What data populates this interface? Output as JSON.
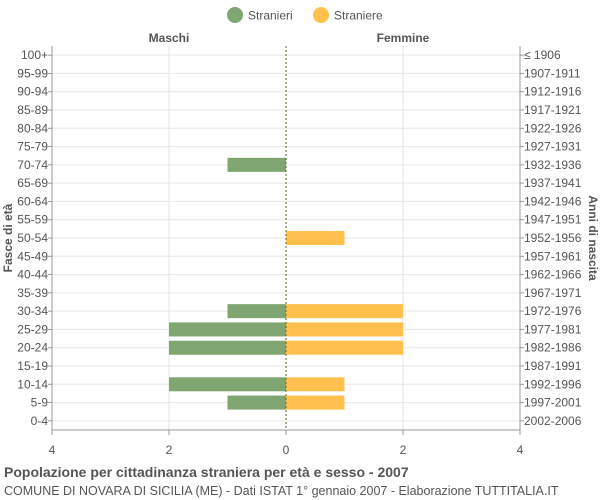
{
  "chart_data": {
    "type": "bar",
    "orientation": "horizontal-population-pyramid",
    "legend": {
      "placement": "top",
      "items": [
        {
          "label": "Stranieri",
          "color": "#7fa570"
        },
        {
          "label": "Straniere",
          "color": "#ffc04d"
        }
      ]
    },
    "left_header": "Maschi",
    "right_header": "Femmine",
    "ylabel_left": "Fasce di età",
    "ylabel_right": "Anni di nascita",
    "x_ticks": [
      "4",
      "2",
      "0",
      "2",
      "4"
    ],
    "xlim": [
      -4,
      4
    ],
    "grid": true,
    "age_groups": [
      "100+",
      "95-99",
      "90-94",
      "85-89",
      "80-84",
      "75-79",
      "70-74",
      "65-69",
      "60-64",
      "55-59",
      "50-54",
      "45-49",
      "40-44",
      "35-39",
      "30-34",
      "25-29",
      "20-24",
      "15-19",
      "10-14",
      "5-9",
      "0-4"
    ],
    "birth_years": [
      "≤ 1906",
      "1907-1911",
      "1912-1916",
      "1917-1921",
      "1922-1926",
      "1927-1931",
      "1932-1936",
      "1937-1941",
      "1942-1946",
      "1947-1951",
      "1952-1956",
      "1957-1961",
      "1962-1966",
      "1967-1971",
      "1972-1976",
      "1977-1981",
      "1982-1986",
      "1987-1991",
      "1992-1996",
      "1997-2001",
      "2002-2006"
    ],
    "series": [
      {
        "name": "Stranieri",
        "color": "#7fa570",
        "values": [
          0,
          0,
          0,
          0,
          0,
          0,
          1,
          0,
          0,
          0,
          0,
          0,
          0,
          0,
          1,
          2,
          2,
          0,
          2,
          1,
          0
        ]
      },
      {
        "name": "Straniere",
        "color": "#ffc04d",
        "values": [
          0,
          0,
          0,
          0,
          0,
          0,
          0,
          0,
          0,
          0,
          1,
          0,
          0,
          0,
          2,
          2,
          2,
          0,
          1,
          1,
          0
        ]
      }
    ]
  },
  "footer": {
    "title": "Popolazione per cittadinanza straniera per età e sesso - 2007",
    "subtitle": "COMUNE DI NOVARA DI SICILIA (ME) - Dati ISTAT 1° gennaio 2007 - Elaborazione TUTTITALIA.IT"
  }
}
